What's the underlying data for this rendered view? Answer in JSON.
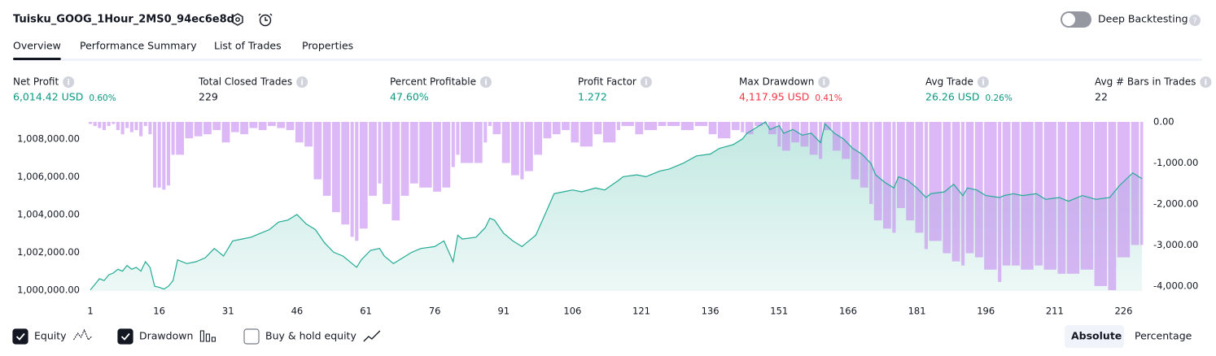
{
  "header": {
    "title": "Tuisku_GOOG_1Hour_2MS0_94ec6e8d",
    "toggle_label": "Deep Backtesting",
    "toggle_on": false
  },
  "tabs": [
    "Overview",
    "Performance Summary",
    "List of Trades",
    "Properties"
  ],
  "active_tab": 0,
  "metrics": [
    {
      "label": "Net Profit",
      "value": "6,014.42 USD",
      "percent": "0.60%",
      "tone": "positive"
    },
    {
      "label": "Total Closed Trades",
      "value": "229",
      "tone": "neutral"
    },
    {
      "label": "Percent Profitable",
      "value": "47.60%",
      "tone": "positive"
    },
    {
      "label": "Profit Factor",
      "value": "1.272",
      "tone": "positive"
    },
    {
      "label": "Max Drawdown",
      "value": "4,117.95 USD",
      "percent": "0.41%",
      "tone": "negative"
    },
    {
      "label": "Avg Trade",
      "value": "26.26 USD",
      "percent": "0.26%",
      "tone": "positive"
    },
    {
      "label": "Avg # Bars in Trades",
      "value": "22",
      "tone": "neutral"
    }
  ],
  "chart_data": {
    "type": "equity",
    "x": [
      1,
      2,
      3,
      4,
      5,
      6,
      7,
      8,
      9,
      10,
      11,
      12,
      13,
      14,
      15,
      16,
      17,
      18,
      19,
      20,
      22,
      24,
      26,
      28,
      30,
      32,
      34,
      36,
      38,
      40,
      42,
      44,
      46,
      48,
      50,
      52,
      54,
      56,
      58,
      59,
      60,
      62,
      64,
      65,
      67,
      69,
      71,
      73,
      76,
      78,
      80,
      81,
      82,
      85,
      87,
      88,
      89,
      91,
      93,
      95,
      96,
      98,
      100,
      102,
      104,
      106,
      108,
      111,
      113,
      116,
      117,
      120,
      122,
      125,
      127,
      130,
      133,
      136,
      138,
      141,
      143,
      144,
      146,
      148,
      149,
      151,
      152,
      154,
      156,
      158,
      160,
      161,
      163,
      165,
      167,
      169,
      171,
      172,
      174,
      176,
      177,
      179,
      181,
      183,
      184,
      187,
      189,
      191,
      192,
      194,
      196,
      199,
      200,
      202,
      204,
      207,
      209,
      212,
      214,
      217,
      220,
      223,
      225,
      228,
      230
    ],
    "series": [
      {
        "name": "Equity",
        "color": "#22ab94",
        "checked": true,
        "values": [
          1000000,
          1000300,
          1000600,
          1000500,
          1000800,
          1000900,
          1001100,
          1001000,
          1001300,
          1001100,
          1001200,
          1001000,
          1001500,
          1001200,
          1000200,
          1000150,
          1000050,
          1000200,
          1000500,
          1001600,
          1001400,
          1001500,
          1001700,
          1002200,
          1001800,
          1002600,
          1002700,
          1002800,
          1003000,
          1003200,
          1003600,
          1003700,
          1004000,
          1003500,
          1003200,
          1002500,
          1002000,
          1001800,
          1001400,
          1001200,
          1001600,
          1002100,
          1002200,
          1001800,
          1001400,
          1001700,
          1002000,
          1002200,
          1002300,
          1002600,
          1001500,
          1002900,
          1002700,
          1002800,
          1003300,
          1003800,
          1003700,
          1003000,
          1002600,
          1002300,
          1002500,
          1002900,
          1004000,
          1005100,
          1005200,
          1005300,
          1005200,
          1005400,
          1005300,
          1005800,
          1006000,
          1006100,
          1006000,
          1006300,
          1006400,
          1006700,
          1007100,
          1007200,
          1007500,
          1007700,
          1008000,
          1008300,
          1008600,
          1008900,
          1008500,
          1008700,
          1008300,
          1008500,
          1008200,
          1008300,
          1007800,
          1008800,
          1008300,
          1008000,
          1007500,
          1007200,
          1006700,
          1006100,
          1005700,
          1005400,
          1006000,
          1005800,
          1005400,
          1004900,
          1005100,
          1005200,
          1005600,
          1005000,
          1005400,
          1005300,
          1005000,
          1004900,
          1005000,
          1005100,
          1005000,
          1005100,
          1004800,
          1004900,
          1004700,
          1005000,
          1004800,
          1004900,
          1005500,
          1006200,
          1005900
        ]
      },
      {
        "name": "Drawdown",
        "color": "#c58af0",
        "axis": "y2",
        "checked": true,
        "values": [
          -50,
          -100,
          -150,
          -200,
          -100,
          -50,
          -200,
          -300,
          -150,
          -250,
          -200,
          -350,
          -100,
          -300,
          -1600,
          -1600,
          -1650,
          -1550,
          -800,
          -800,
          -400,
          -350,
          -300,
          -200,
          -500,
          -250,
          -300,
          -150,
          -200,
          -100,
          -150,
          -200,
          -500,
          -600,
          -1400,
          -1800,
          -2200,
          -2500,
          -2800,
          -2900,
          -2600,
          -1800,
          -1500,
          -2000,
          -2400,
          -1800,
          -1500,
          -1600,
          -1700,
          -1600,
          -1100,
          -800,
          -1000,
          -1000,
          -500,
          -100,
          -300,
          -1000,
          -1300,
          -1400,
          -1200,
          -800,
          -400,
          -300,
          -200,
          -500,
          -600,
          -300,
          -500,
          -200,
          -100,
          -300,
          -200,
          -100,
          -100,
          -200,
          -100,
          -300,
          -400,
          -200,
          -250,
          -300,
          -100,
          -50,
          -300,
          -600,
          -700,
          -500,
          -600,
          -800,
          -900,
          -200,
          -700,
          -900,
          -1400,
          -1600,
          -2000,
          -2400,
          -2600,
          -2700,
          -2100,
          -2400,
          -2700,
          -3100,
          -2900,
          -3200,
          -3400,
          -3500,
          -3200,
          -3300,
          -3600,
          -3900,
          -3500,
          -3500,
          -3600,
          -3500,
          -3600,
          -3700,
          -3700,
          -3600,
          -4000,
          -4100,
          -3300,
          -3000,
          -3000
        ]
      }
    ],
    "extra_toggle": {
      "name": "Buy & hold equity",
      "checked": false
    },
    "xlim": [
      1,
      230
    ],
    "xticks": [
      1,
      16,
      31,
      46,
      61,
      76,
      91,
      106,
      121,
      136,
      151,
      166,
      181,
      196,
      211,
      226
    ],
    "ylim": [
      999950,
      1008900
    ],
    "yticks": [
      {
        "value": 1000000,
        "label": "1,000,000.00"
      },
      {
        "value": 1002000,
        "label": "1,002,000.00"
      },
      {
        "value": 1004000,
        "label": "1,004,000.00"
      },
      {
        "value": 1006000,
        "label": "1,006,000.00"
      },
      {
        "value": 1008000,
        "label": "1,008,000.00"
      }
    ],
    "y2lim": [
      -4120,
      0
    ],
    "y2ticks": [
      {
        "value": 0,
        "label": "0.00"
      },
      {
        "value": -1000,
        "label": "-1,000.00"
      },
      {
        "value": -2000,
        "label": "-2,000.00"
      },
      {
        "value": -3000,
        "label": "-3,000.00"
      },
      {
        "value": -4000,
        "label": "-4,000.00"
      }
    ],
    "modes": [
      "Absolute",
      "Percentage"
    ],
    "active_mode": 0
  }
}
